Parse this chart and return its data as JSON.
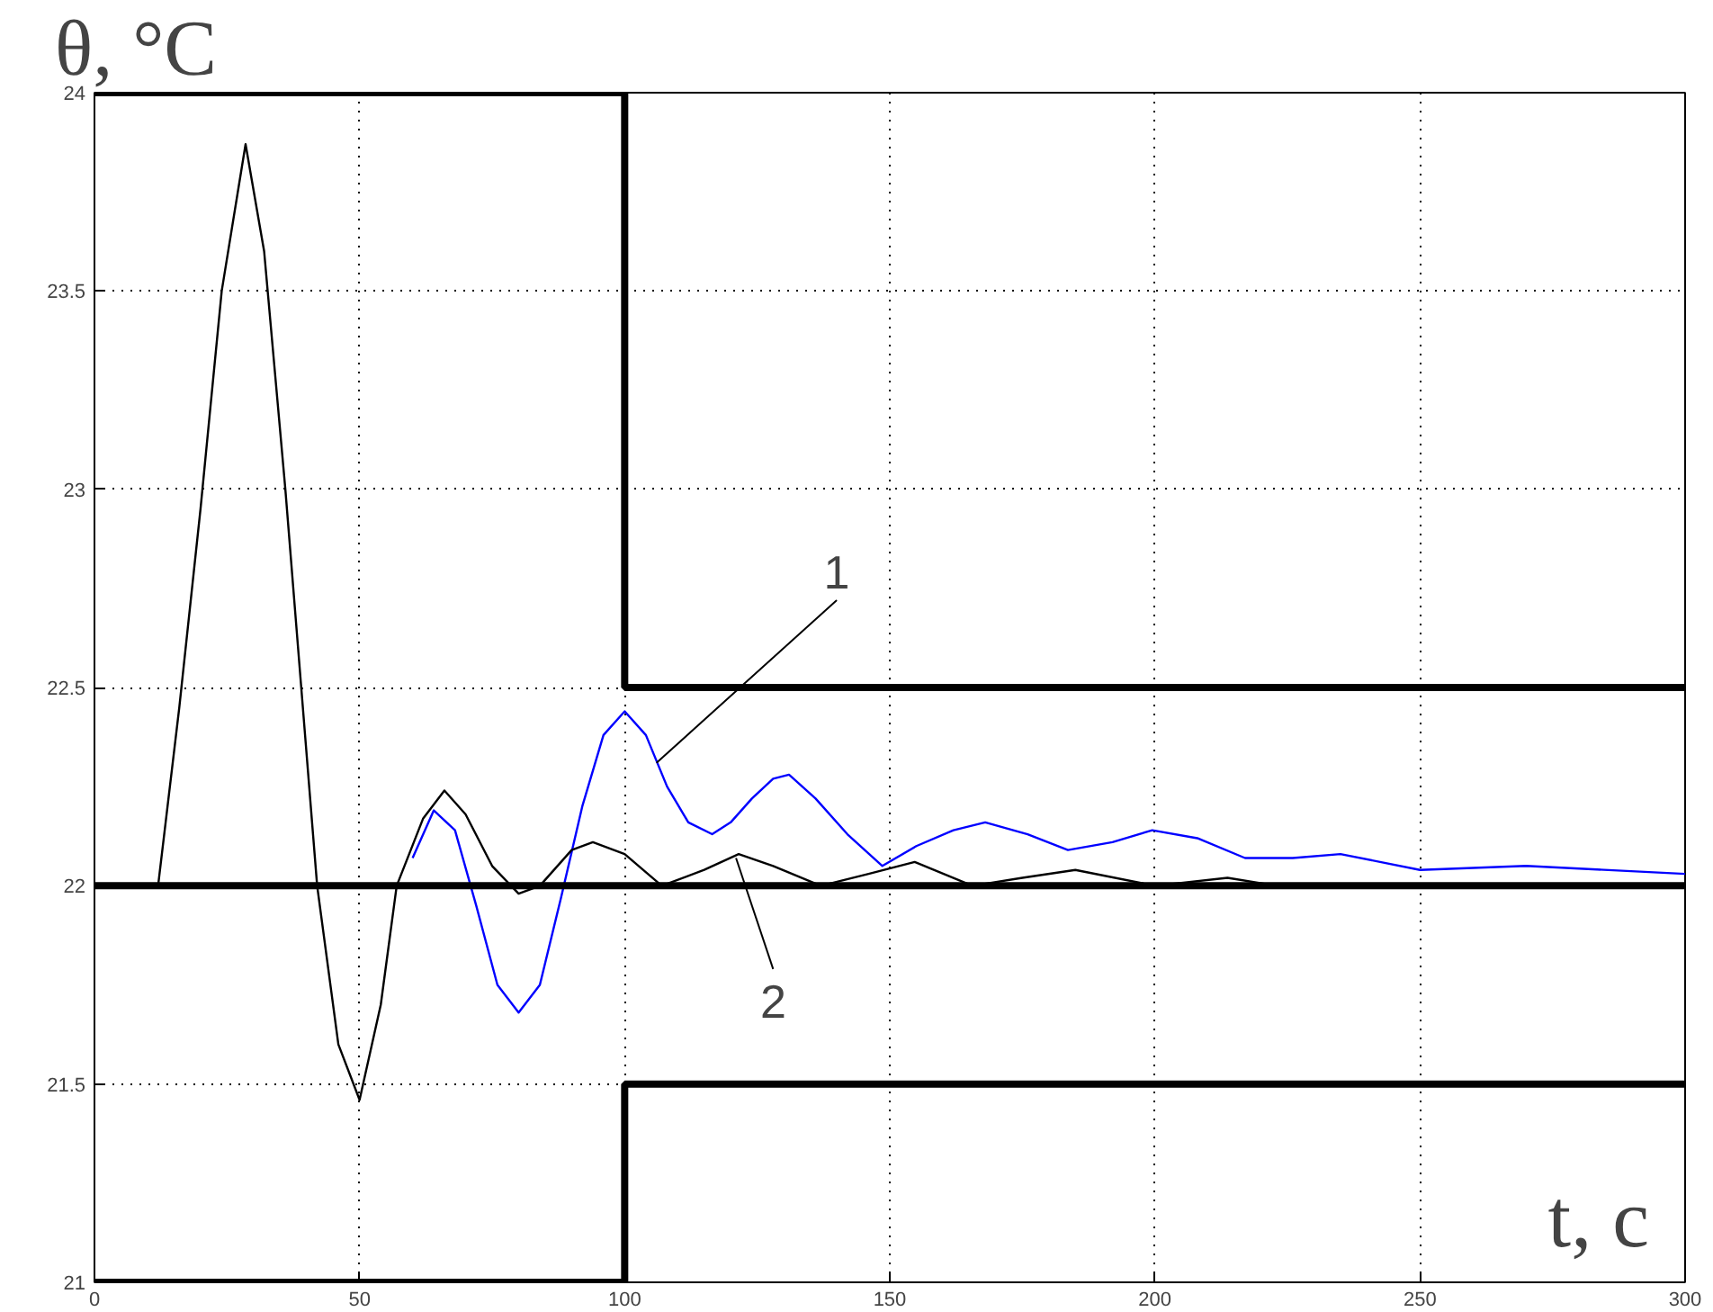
{
  "chart_data": {
    "type": "line",
    "xlabel": "t, c",
    "ylabel": "θ, °C",
    "xlim": [
      0,
      300
    ],
    "ylim": [
      21,
      24
    ],
    "xticks": [
      0,
      50,
      100,
      150,
      200,
      250,
      300
    ],
    "yticks": [
      21,
      21.5,
      22,
      22.5,
      23,
      23.5,
      24
    ],
    "grid": true,
    "series": [
      {
        "color": "#0000ff",
        "x": [
          60,
          64,
          68,
          72,
          76,
          80,
          84,
          88,
          92,
          96,
          100,
          104,
          108,
          112,
          116.5,
          120,
          124,
          128,
          131,
          136,
          142,
          148.6,
          155,
          162,
          168,
          176,
          183.6,
          192,
          199.5,
          208,
          217,
          226,
          235,
          250,
          270,
          300
        ],
        "values": [
          22.07,
          22.19,
          22.14,
          21.95,
          21.75,
          21.68,
          21.75,
          21.97,
          22.2,
          22.38,
          22.44,
          22.38,
          22.25,
          22.16,
          22.13,
          22.16,
          22.22,
          22.27,
          22.28,
          22.22,
          22.13,
          22.05,
          22.1,
          22.14,
          22.16,
          22.13,
          22.09,
          22.11,
          22.14,
          22.12,
          22.07,
          22.07,
          22.08,
          22.04,
          22.05,
          22.03
        ]
      },
      {
        "color": "#000000",
        "x": [
          12,
          16,
          20,
          24,
          28.5,
          32,
          36,
          39,
          42,
          46,
          50,
          54,
          57,
          62,
          66,
          70,
          75,
          80,
          84,
          90,
          94,
          100,
          107,
          115,
          121.5,
          128,
          137,
          146,
          154.7,
          165.6,
          175,
          185,
          200,
          213.7,
          223
        ],
        "values": [
          22,
          22.45,
          22.95,
          23.5,
          23.87,
          23.6,
          23.0,
          22.5,
          22.0,
          21.6,
          21.46,
          21.7,
          22.0,
          22.17,
          22.24,
          22.18,
          22.05,
          21.98,
          22.0,
          22.09,
          22.11,
          22.08,
          22.0,
          22.04,
          22.08,
          22.05,
          22.0,
          22.03,
          22.06,
          22.0,
          22.02,
          22.04,
          22.0,
          22.02,
          22.0
        ]
      },
      {
        "type": "step",
        "color": "#000000",
        "x": [
          0,
          100,
          300
        ],
        "values": [
          24,
          22.5,
          22.5
        ]
      },
      {
        "type": "step",
        "color": "#000000",
        "x": [
          0,
          100,
          300
        ],
        "values": [
          21,
          21.5,
          21.5
        ]
      }
    ],
    "ref_lines": [
      {
        "axis": "y",
        "value": 22,
        "color": "#000000"
      }
    ],
    "annotations": [
      {
        "text": "1",
        "x": 106,
        "y": 22.31
      },
      {
        "text": "2",
        "x": 121,
        "y": 22.07
      }
    ]
  }
}
